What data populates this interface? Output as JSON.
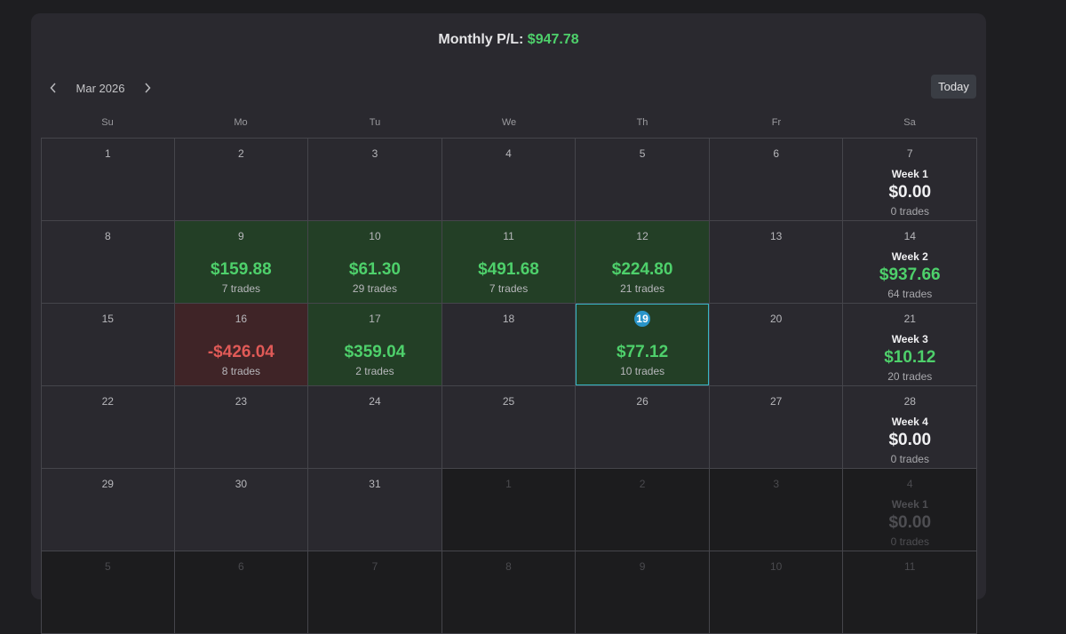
{
  "header": {
    "label": "Monthly P/L:",
    "value": "$947.78"
  },
  "nav": {
    "month": "Mar 2026",
    "prev_icon": "chevron-left-icon",
    "next_icon": "chevron-right-icon",
    "today_label": "Today"
  },
  "weekdays": [
    "Su",
    "Mo",
    "Tu",
    "We",
    "Th",
    "Fr",
    "Sa"
  ],
  "colors": {
    "profit": "#4ed06b",
    "loss": "#e05a57",
    "profit_bg": "#233f26",
    "loss_bg": "#3f2427",
    "today_badge": "#2a95c9",
    "today_outline": "#37b5c6"
  },
  "weeks": [
    [
      {
        "day": "1"
      },
      {
        "day": "2"
      },
      {
        "day": "3"
      },
      {
        "day": "4"
      },
      {
        "day": "5"
      },
      {
        "day": "6"
      },
      {
        "day": "7",
        "week_label": "Week 1",
        "week_pl": "$0.00",
        "week_trades": "0 trades"
      }
    ],
    [
      {
        "day": "8"
      },
      {
        "day": "9",
        "pl": "$159.88",
        "trades": "7 trades",
        "status": "profit"
      },
      {
        "day": "10",
        "pl": "$61.30",
        "trades": "29 trades",
        "status": "profit"
      },
      {
        "day": "11",
        "pl": "$491.68",
        "trades": "7 trades",
        "status": "profit"
      },
      {
        "day": "12",
        "pl": "$224.80",
        "trades": "21 trades",
        "status": "profit"
      },
      {
        "day": "13"
      },
      {
        "day": "14",
        "week_label": "Week 2",
        "week_pl": "$937.66",
        "week_trades": "64 trades",
        "week_status": "profit"
      }
    ],
    [
      {
        "day": "15"
      },
      {
        "day": "16",
        "pl": "-$426.04",
        "trades": "8 trades",
        "status": "loss"
      },
      {
        "day": "17",
        "pl": "$359.04",
        "trades": "2 trades",
        "status": "profit"
      },
      {
        "day": "18"
      },
      {
        "day": "19",
        "pl": "$77.12",
        "trades": "10 trades",
        "status": "profit",
        "today": true
      },
      {
        "day": "20"
      },
      {
        "day": "21",
        "week_label": "Week 3",
        "week_pl": "$10.12",
        "week_trades": "20 trades",
        "week_status": "profit"
      }
    ],
    [
      {
        "day": "22"
      },
      {
        "day": "23"
      },
      {
        "day": "24"
      },
      {
        "day": "25"
      },
      {
        "day": "26"
      },
      {
        "day": "27"
      },
      {
        "day": "28",
        "week_label": "Week 4",
        "week_pl": "$0.00",
        "week_trades": "0 trades"
      }
    ],
    [
      {
        "day": "29"
      },
      {
        "day": "30"
      },
      {
        "day": "31"
      },
      {
        "day": "1",
        "outside": true
      },
      {
        "day": "2",
        "outside": true
      },
      {
        "day": "3",
        "outside": true
      },
      {
        "day": "4",
        "outside": true,
        "week_label": "Week 1",
        "week_pl": "$0.00",
        "week_trades": "0 trades"
      }
    ],
    [
      {
        "day": "5",
        "outside": true
      },
      {
        "day": "6",
        "outside": true
      },
      {
        "day": "7",
        "outside": true
      },
      {
        "day": "8",
        "outside": true
      },
      {
        "day": "9",
        "outside": true
      },
      {
        "day": "10",
        "outside": true
      },
      {
        "day": "11",
        "outside": true
      }
    ]
  ]
}
